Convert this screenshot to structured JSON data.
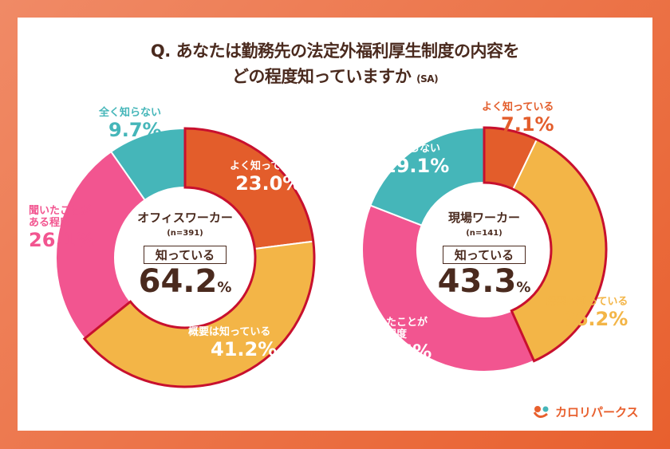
{
  "title_line1": "Q. あなたは勤務先の法定外福利厚生制度の内容を",
  "title_line2": "どの程度知っていますか",
  "title_suffix": "(SA)",
  "colors": {
    "よく知っている": "#e35d2b",
    "概要は知っている": "#f3b547",
    "聞いたことがある程度": "#f25590",
    "全く知らない": "#45b6b9",
    "outline": "#c8102e",
    "text": "#4a2a1e"
  },
  "logo_text": "カロリパークス",
  "chart_data": [
    {
      "type": "pie",
      "group": "オフィスワーカー",
      "n_label": "(n=391)",
      "summary_label": "知っている",
      "summary_value": "64.2",
      "summary_unit": "%",
      "slices": [
        {
          "label": "よく知っている",
          "value": 23.0,
          "display": "23.0%"
        },
        {
          "label": "概要は知っている",
          "value": 41.2,
          "display": "41.2%"
        },
        {
          "label": "聞いたことがある程度",
          "value": 26.1,
          "display": "26.1%"
        },
        {
          "label": "全く知らない",
          "value": 9.7,
          "display": "9.7%"
        }
      ]
    },
    {
      "type": "pie",
      "group": "現場ワーカー",
      "n_label": "(n=141)",
      "summary_label": "知っている",
      "summary_value": "43.3",
      "summary_unit": "%",
      "slices": [
        {
          "label": "よく知っている",
          "value": 7.1,
          "display": "7.1%"
        },
        {
          "label": "概要は知っている",
          "value": 36.2,
          "display": "36.2%"
        },
        {
          "label": "聞いたことがある程度",
          "value": 37.6,
          "display": "37.6%"
        },
        {
          "label": "全く知らない",
          "value": 19.1,
          "display": "19.1%"
        }
      ]
    }
  ]
}
